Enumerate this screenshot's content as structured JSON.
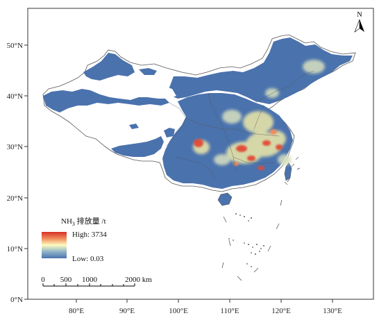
{
  "map": {
    "lon_ticks": [
      "80°E",
      "90°E",
      "100°E",
      "110°E",
      "120°E",
      "130°E"
    ],
    "lat_ticks": [
      "0°N",
      "10°N",
      "20°N",
      "30°N",
      "40°N",
      "50°N"
    ],
    "north_label": "N",
    "legend": {
      "title_prefix": "NH",
      "title_sub": "3",
      "title_suffix": " 排放量 /t",
      "high_label": "High: 3734",
      "low_label": "Low: 0.03",
      "colors": [
        "#d73027",
        "#fdfbc0",
        "#4a72ad"
      ]
    },
    "scale_bar": {
      "labels": [
        "0",
        "500",
        "1000",
        "2000 km"
      ]
    },
    "colors": {
      "land_low": "#4a72ad",
      "hot_red": "#e24a36",
      "hot_yellow": "#eee9a8",
      "border": "#555555"
    }
  }
}
